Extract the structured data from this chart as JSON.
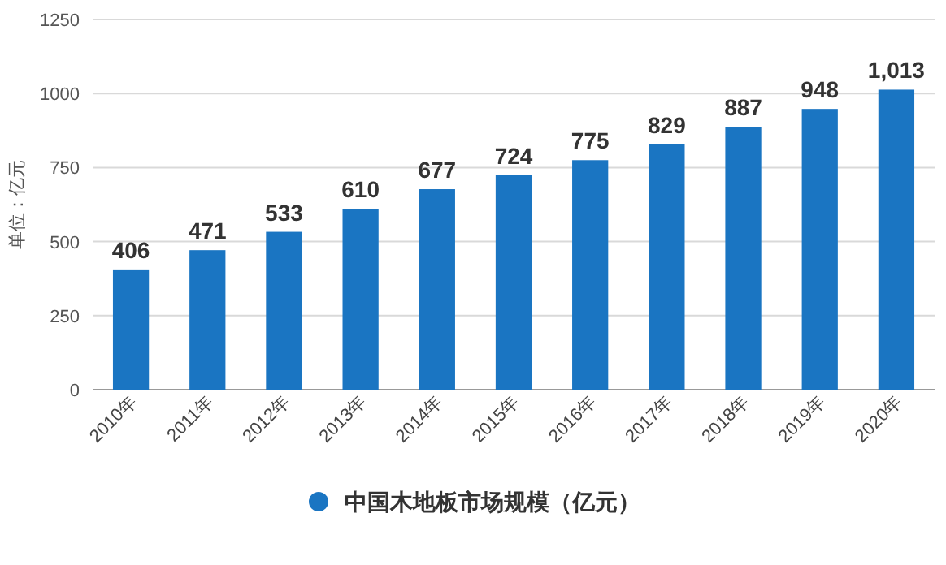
{
  "chart_data": {
    "type": "bar",
    "ylabel": "单位：亿元",
    "categories": [
      "2010年",
      "2011年",
      "2012年",
      "2013年",
      "2014年",
      "2015年",
      "2016年",
      "2017年",
      "2018年",
      "2019年",
      "2020年"
    ],
    "series": [
      {
        "name": "中国木地板市场规模（亿元）",
        "color": "#1a75c2",
        "values": [
          406,
          471,
          533,
          610,
          677,
          724,
          775,
          829,
          887,
          948,
          1013
        ],
        "value_labels": [
          "406",
          "471",
          "533",
          "610",
          "677",
          "724",
          "775",
          "829",
          "887",
          "948",
          "1,013"
        ]
      }
    ],
    "ylim": [
      0,
      1250
    ],
    "yticks": [
      0,
      250,
      500,
      750,
      1000,
      1250
    ],
    "grid": "y",
    "legend": "bottom"
  }
}
